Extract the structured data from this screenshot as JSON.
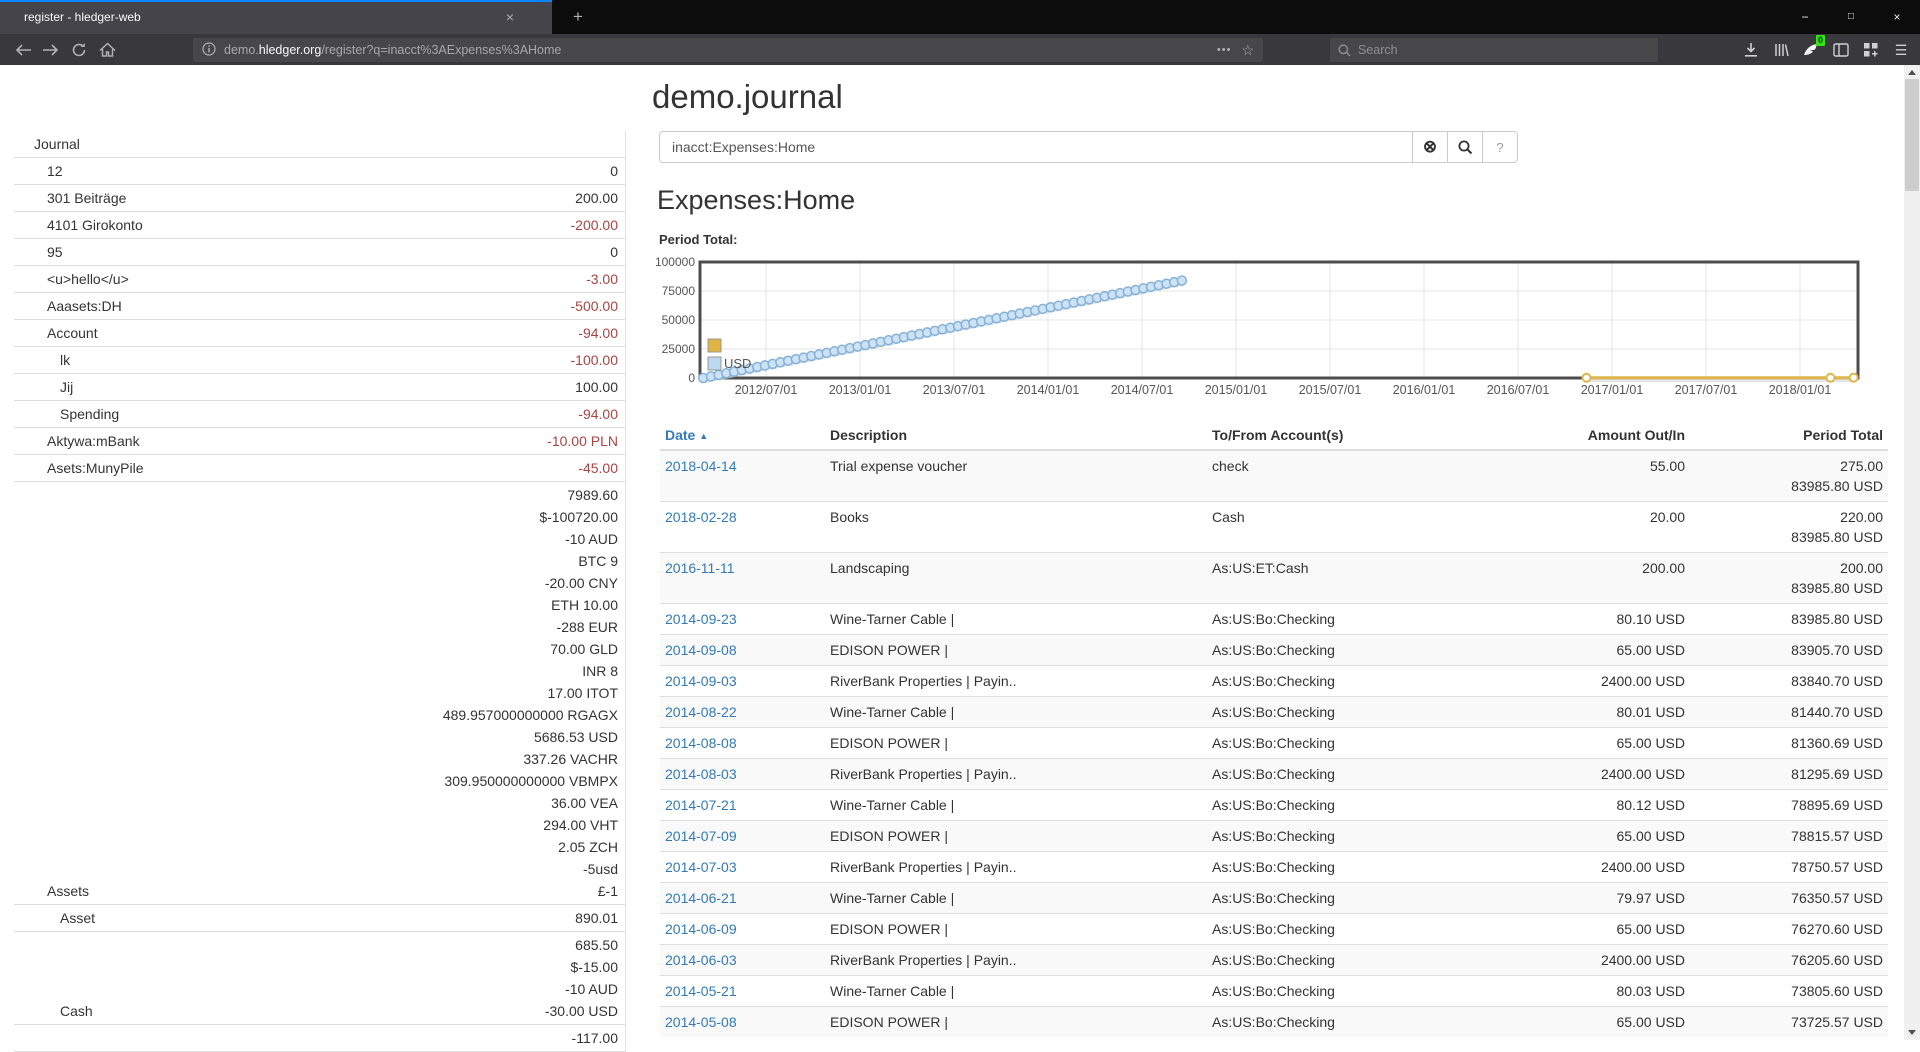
{
  "browser": {
    "tab_title": "register - hledger-web",
    "tab_close_icon": "×",
    "new_tab_button": "+",
    "window_controls": [
      "−",
      "□",
      "×"
    ],
    "url": {
      "prefix": "demo.",
      "domain": "hledger.org",
      "path": "/register?q=inacct%3AExpenses%3AHome"
    },
    "page_actions_dots": "•••",
    "bookmark_star": "☆",
    "search_placeholder": "Search",
    "extension_badge": "0",
    "menu_icon": "☰"
  },
  "sidebar": {
    "rows": [
      {
        "name": "Journal",
        "depth": 0,
        "amounts": []
      },
      {
        "name": "12",
        "depth": 1,
        "amounts": [
          {
            "t": "0",
            "neg": false
          }
        ]
      },
      {
        "name": "301 Beiträge",
        "depth": 1,
        "amounts": [
          {
            "t": "200.00",
            "neg": false
          }
        ]
      },
      {
        "name": "4101 Girokonto",
        "depth": 1,
        "amounts": [
          {
            "t": "-200.00",
            "neg": true
          }
        ]
      },
      {
        "name": "95",
        "depth": 1,
        "amounts": [
          {
            "t": "0",
            "neg": false
          }
        ]
      },
      {
        "name": "<u>hello</u>",
        "depth": 1,
        "amounts": [
          {
            "t": "-3.00",
            "neg": true
          }
        ]
      },
      {
        "name": "Aaasets:DH",
        "depth": 1,
        "amounts": [
          {
            "t": "-500.00",
            "neg": true
          }
        ]
      },
      {
        "name": "Account",
        "depth": 1,
        "amounts": [
          {
            "t": "-94.00",
            "neg": true
          }
        ]
      },
      {
        "name": "lk",
        "depth": 2,
        "amounts": [
          {
            "t": "-100.00",
            "neg": true
          }
        ]
      },
      {
        "name": "Jij",
        "depth": 2,
        "amounts": [
          {
            "t": "100.00",
            "neg": false
          }
        ]
      },
      {
        "name": "Spending",
        "depth": 2,
        "amounts": [
          {
            "t": "-94.00",
            "neg": true
          }
        ]
      },
      {
        "name": "Aktywa:mBank",
        "depth": 1,
        "amounts": [
          {
            "t": "-10.00 PLN",
            "neg": true
          }
        ]
      },
      {
        "name": "Asets:MunyPile",
        "depth": 1,
        "amounts": [
          {
            "t": "-45.00",
            "neg": true
          }
        ]
      },
      {
        "name": "Assets",
        "depth": 1,
        "amounts": [
          {
            "t": "7989.60",
            "neg": false
          },
          {
            "t": "$-100720.00",
            "neg": false
          },
          {
            "t": "-10 AUD",
            "neg": false
          },
          {
            "t": "BTC 9",
            "neg": false
          },
          {
            "t": "-20.00 CNY",
            "neg": false
          },
          {
            "t": "ETH 10.00",
            "neg": false
          },
          {
            "t": "-288 EUR",
            "neg": false
          },
          {
            "t": "70.00 GLD",
            "neg": false
          },
          {
            "t": "INR 8",
            "neg": false
          },
          {
            "t": "17.00 ITOT",
            "neg": false
          },
          {
            "t": "489.957000000000 RGAGX",
            "neg": false
          },
          {
            "t": "5686.53 USD",
            "neg": false
          },
          {
            "t": "337.26 VACHR",
            "neg": false
          },
          {
            "t": "309.950000000000 VBMPX",
            "neg": false
          },
          {
            "t": "36.00 VEA",
            "neg": false
          },
          {
            "t": "294.00 VHT",
            "neg": false
          },
          {
            "t": "2.05 ZCH",
            "neg": false
          },
          {
            "t": "-5usd",
            "neg": false
          },
          {
            "t": "£-1",
            "neg": false
          }
        ]
      },
      {
        "name": "Asset",
        "depth": 2,
        "amounts": [
          {
            "t": "890.01",
            "neg": false
          }
        ]
      },
      {
        "name": "Cash",
        "depth": 2,
        "amounts": [
          {
            "t": "685.50",
            "neg": false
          },
          {
            "t": "$-15.00",
            "neg": false
          },
          {
            "t": "-10 AUD",
            "neg": false
          },
          {
            "t": "-30.00 USD",
            "neg": false
          }
        ]
      },
      {
        "name": "",
        "depth": 2,
        "amounts": [
          {
            "t": "-117.00",
            "neg": false
          }
        ]
      }
    ]
  },
  "main": {
    "page_title": "demo.journal",
    "search": {
      "value": "inacct:Expenses:Home",
      "clear_icon": "⊗",
      "help_label": "?"
    },
    "heading": "Expenses:Home",
    "chart_label": "Period Total:"
  },
  "chart_data": {
    "type": "line",
    "title": "Period Total:",
    "xlabel": "",
    "ylabel": "",
    "ylim": [
      0,
      100000
    ],
    "yticks": [
      0,
      25000,
      50000,
      75000,
      100000
    ],
    "xticks": [
      "2012/07/01",
      "2013/01/01",
      "2013/07/01",
      "2014/01/01",
      "2014/07/01",
      "2015/01/01",
      "2015/07/01",
      "2016/01/01",
      "2016/07/01",
      "2017/01/01",
      "2017/07/01",
      "2018/01/01"
    ],
    "grid": true,
    "legend_position": "bottom-left",
    "legend": [
      {
        "label": "",
        "color": "#e0b440"
      },
      {
        "label": "USD",
        "color": "#bcd8f0"
      }
    ],
    "series": [
      {
        "name": "USD",
        "kind": "cumulative-total",
        "color": "#bcd8f0",
        "start_date": "2012-03-01",
        "interval_days": 15,
        "values": [
          0,
          1355,
          2710,
          4065,
          5420,
          6775,
          8130,
          9485,
          10840,
          12195,
          13550,
          14905,
          16260,
          17615,
          18970,
          20325,
          21680,
          23035,
          24390,
          25745,
          27100,
          28455,
          29810,
          31165,
          32520,
          33875,
          35230,
          36585,
          37940,
          39295,
          40650,
          42005,
          43360,
          44715,
          46070,
          47425,
          48780,
          50135,
          51490,
          52845,
          54200,
          55555,
          56910,
          58265,
          59620,
          60975,
          62330,
          63685,
          65040,
          66395,
          67750,
          69105,
          70460,
          71815,
          73170,
          74525,
          75880,
          77235,
          78590,
          79945,
          81300,
          82655,
          83986
        ]
      },
      {
        "name": "",
        "kind": "points",
        "color": "#e0b440",
        "points": [
          {
            "date": "2016-11-11",
            "value": 200
          },
          {
            "date": "2018-02-28",
            "value": 220
          },
          {
            "date": "2018-04-14",
            "value": 275
          }
        ]
      }
    ]
  },
  "register": {
    "columns": [
      "Date",
      "Description",
      "To/From Account(s)",
      "Amount Out/In",
      "Period Total"
    ],
    "sort_icon": "▲",
    "rows": [
      {
        "date": "2018-04-14",
        "description": "Trial expense voucher",
        "account": "check",
        "amount": "55.00",
        "totals": [
          "275.00",
          "83985.80 USD"
        ]
      },
      {
        "date": "2018-02-28",
        "description": "Books",
        "account": "Cash",
        "amount": "20.00",
        "totals": [
          "220.00",
          "83985.80 USD"
        ]
      },
      {
        "date": "2016-11-11",
        "description": "Landscaping",
        "account": "As:US:ET:Cash",
        "amount": "200.00",
        "totals": [
          "200.00",
          "83985.80 USD"
        ]
      },
      {
        "date": "2014-09-23",
        "description": "Wine-Tarner Cable |",
        "account": "As:US:Bo:Checking",
        "amount": "80.10 USD",
        "totals": [
          "83985.80 USD"
        ]
      },
      {
        "date": "2014-09-08",
        "description": "EDISON POWER |",
        "account": "As:US:Bo:Checking",
        "amount": "65.00 USD",
        "totals": [
          "83905.70 USD"
        ]
      },
      {
        "date": "2014-09-03",
        "description": "RiverBank Properties | Payin..",
        "account": "As:US:Bo:Checking",
        "amount": "2400.00 USD",
        "totals": [
          "83840.70 USD"
        ]
      },
      {
        "date": "2014-08-22",
        "description": "Wine-Tarner Cable |",
        "account": "As:US:Bo:Checking",
        "amount": "80.01 USD",
        "totals": [
          "81440.70 USD"
        ]
      },
      {
        "date": "2014-08-08",
        "description": "EDISON POWER |",
        "account": "As:US:Bo:Checking",
        "amount": "65.00 USD",
        "totals": [
          "81360.69 USD"
        ]
      },
      {
        "date": "2014-08-03",
        "description": "RiverBank Properties | Payin..",
        "account": "As:US:Bo:Checking",
        "amount": "2400.00 USD",
        "totals": [
          "81295.69 USD"
        ]
      },
      {
        "date": "2014-07-21",
        "description": "Wine-Tarner Cable |",
        "account": "As:US:Bo:Checking",
        "amount": "80.12 USD",
        "totals": [
          "78895.69 USD"
        ]
      },
      {
        "date": "2014-07-09",
        "description": "EDISON POWER |",
        "account": "As:US:Bo:Checking",
        "amount": "65.00 USD",
        "totals": [
          "78815.57 USD"
        ]
      },
      {
        "date": "2014-07-03",
        "description": "RiverBank Properties | Payin..",
        "account": "As:US:Bo:Checking",
        "amount": "2400.00 USD",
        "totals": [
          "78750.57 USD"
        ]
      },
      {
        "date": "2014-06-21",
        "description": "Wine-Tarner Cable |",
        "account": "As:US:Bo:Checking",
        "amount": "79.97 USD",
        "totals": [
          "76350.57 USD"
        ]
      },
      {
        "date": "2014-06-09",
        "description": "EDISON POWER |",
        "account": "As:US:Bo:Checking",
        "amount": "65.00 USD",
        "totals": [
          "76270.60 USD"
        ]
      },
      {
        "date": "2014-06-03",
        "description": "RiverBank Properties | Payin..",
        "account": "As:US:Bo:Checking",
        "amount": "2400.00 USD",
        "totals": [
          "76205.60 USD"
        ]
      },
      {
        "date": "2014-05-21",
        "description": "Wine-Tarner Cable |",
        "account": "As:US:Bo:Checking",
        "amount": "80.03 USD",
        "totals": [
          "73805.60 USD"
        ]
      },
      {
        "date": "2014-05-08",
        "description": "EDISON POWER |",
        "account": "As:US:Bo:Checking",
        "amount": "65.00 USD",
        "totals": [
          "73725.57 USD"
        ]
      }
    ]
  }
}
